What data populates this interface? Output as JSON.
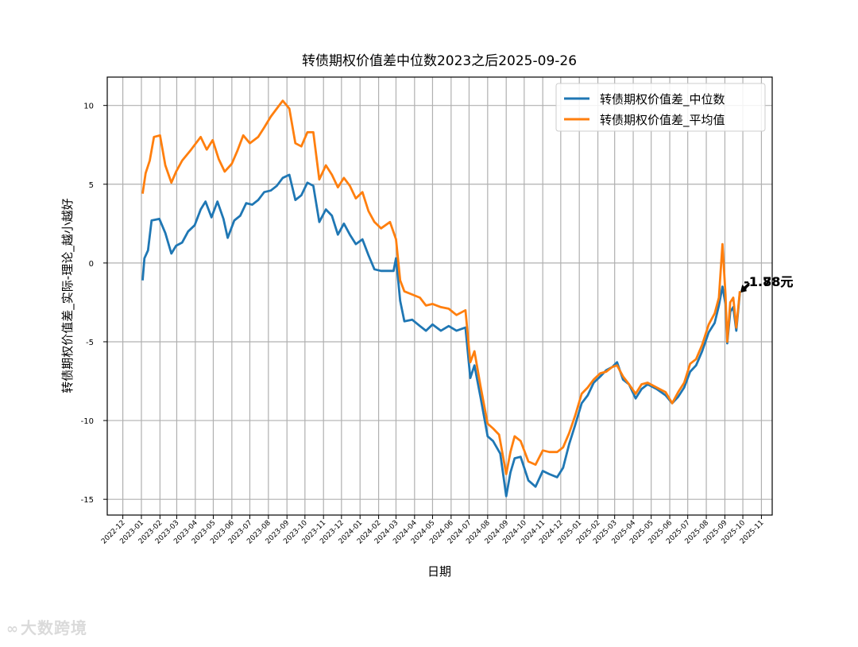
{
  "chart_data": {
    "type": "line",
    "title": "转债期权价值差中位数2023之后2025-09-26",
    "xlabel": "日期",
    "ylabel": "转债期权价值差_实际-理论_越小越好",
    "ylim": [
      -16,
      11.8
    ],
    "yticks": [
      10,
      5,
      0,
      -5,
      -10,
      -15
    ],
    "x_tick_labels": [
      "2022-12",
      "2023-01",
      "2023-02",
      "2023-03",
      "2023-04",
      "2023-05",
      "2023-06",
      "2023-07",
      "2023-08",
      "2023-09",
      "2023-10",
      "2023-11",
      "2023-12",
      "2024-01",
      "2024-02",
      "2024-03",
      "2024-04",
      "2024-05",
      "2024-06",
      "2024-07",
      "2024-08",
      "2024-09",
      "2024-10",
      "2024-11",
      "2024-12",
      "2025-01",
      "2025-02",
      "2025-03",
      "2025-04",
      "2025-05",
      "2025-06",
      "2025-07",
      "2025-08",
      "2025-09",
      "2025-10",
      "2025-11"
    ],
    "grid": true,
    "legend": "top-right",
    "series": [
      {
        "name": "转债期权价值差_中位数",
        "color": "#1f77b4",
        "points": [
          [
            "2023-01-03",
            -1.1
          ],
          [
            "2023-01-06",
            0.3
          ],
          [
            "2023-01-12",
            0.8
          ],
          [
            "2023-01-18",
            2.7
          ],
          [
            "2023-01-31",
            2.8
          ],
          [
            "2023-02-10",
            1.9
          ],
          [
            "2023-02-20",
            0.6
          ],
          [
            "2023-02-28",
            1.1
          ],
          [
            "2023-03-10",
            1.3
          ],
          [
            "2023-03-20",
            2.0
          ],
          [
            "2023-03-31",
            2.4
          ],
          [
            "2023-04-10",
            3.4
          ],
          [
            "2023-04-18",
            3.9
          ],
          [
            "2023-04-28",
            2.9
          ],
          [
            "2023-05-08",
            3.9
          ],
          [
            "2023-05-18",
            2.8
          ],
          [
            "2023-05-25",
            1.6
          ],
          [
            "2023-06-05",
            2.7
          ],
          [
            "2023-06-15",
            3.0
          ],
          [
            "2023-06-25",
            3.8
          ],
          [
            "2023-07-05",
            3.7
          ],
          [
            "2023-07-15",
            4.0
          ],
          [
            "2023-07-25",
            4.5
          ],
          [
            "2023-08-05",
            4.6
          ],
          [
            "2023-08-15",
            4.9
          ],
          [
            "2023-08-25",
            5.4
          ],
          [
            "2023-09-05",
            5.6
          ],
          [
            "2023-09-15",
            4.0
          ],
          [
            "2023-09-25",
            4.3
          ],
          [
            "2023-10-05",
            5.1
          ],
          [
            "2023-10-15",
            4.9
          ],
          [
            "2023-10-25",
            2.6
          ],
          [
            "2023-11-05",
            3.4
          ],
          [
            "2023-11-15",
            3.0
          ],
          [
            "2023-11-25",
            1.8
          ],
          [
            "2023-12-05",
            2.5
          ],
          [
            "2023-12-15",
            1.8
          ],
          [
            "2023-12-25",
            1.2
          ],
          [
            "2024-01-05",
            1.5
          ],
          [
            "2024-01-15",
            0.5
          ],
          [
            "2024-01-25",
            -0.4
          ],
          [
            "2024-02-05",
            -0.5
          ],
          [
            "2024-02-26",
            -0.5
          ],
          [
            "2024-03-01",
            0.3
          ],
          [
            "2024-03-08",
            -2.4
          ],
          [
            "2024-03-15",
            -3.7
          ],
          [
            "2024-03-28",
            -3.6
          ],
          [
            "2024-04-10",
            -4.0
          ],
          [
            "2024-04-20",
            -4.3
          ],
          [
            "2024-05-01",
            -3.9
          ],
          [
            "2024-05-15",
            -4.3
          ],
          [
            "2024-05-28",
            -4.0
          ],
          [
            "2024-06-10",
            -4.3
          ],
          [
            "2024-06-25",
            -4.1
          ],
          [
            "2024-07-03",
            -7.3
          ],
          [
            "2024-07-10",
            -6.5
          ],
          [
            "2024-07-20",
            -8.5
          ],
          [
            "2024-08-01",
            -11.0
          ],
          [
            "2024-08-10",
            -11.3
          ],
          [
            "2024-08-22",
            -12.1
          ],
          [
            "2024-09-01",
            -14.8
          ],
          [
            "2024-09-08",
            -13.3
          ],
          [
            "2024-09-15",
            -12.4
          ],
          [
            "2024-09-25",
            -12.3
          ],
          [
            "2024-10-08",
            -13.8
          ],
          [
            "2024-10-20",
            -14.2
          ],
          [
            "2024-11-01",
            -13.2
          ],
          [
            "2024-11-12",
            -13.4
          ],
          [
            "2024-11-25",
            -13.6
          ],
          [
            "2024-12-05",
            -13.0
          ],
          [
            "2024-12-15",
            -11.5
          ],
          [
            "2024-12-25",
            -10.3
          ],
          [
            "2025-01-05",
            -8.9
          ],
          [
            "2025-01-15",
            -8.4
          ],
          [
            "2025-01-25",
            -7.6
          ],
          [
            "2025-02-05",
            -7.2
          ],
          [
            "2025-02-15",
            -6.8
          ],
          [
            "2025-02-25",
            -6.6
          ],
          [
            "2025-03-05",
            -6.3
          ],
          [
            "2025-03-15",
            -7.4
          ],
          [
            "2025-03-25",
            -7.7
          ],
          [
            "2025-04-05",
            -8.6
          ],
          [
            "2025-04-15",
            -8.0
          ],
          [
            "2025-04-25",
            -7.7
          ],
          [
            "2025-05-10",
            -8.0
          ],
          [
            "2025-05-25",
            -8.4
          ],
          [
            "2025-06-05",
            -8.9
          ],
          [
            "2025-06-15",
            -8.5
          ],
          [
            "2025-06-25",
            -7.9
          ],
          [
            "2025-07-05",
            -6.9
          ],
          [
            "2025-07-15",
            -6.5
          ],
          [
            "2025-07-25",
            -5.6
          ],
          [
            "2025-08-05",
            -4.4
          ],
          [
            "2025-08-15",
            -3.8
          ],
          [
            "2025-08-22",
            -2.7
          ],
          [
            "2025-08-28",
            -1.5
          ],
          [
            "2025-09-02",
            -2.6
          ],
          [
            "2025-09-05",
            -5.1
          ],
          [
            "2025-09-10",
            -3.1
          ],
          [
            "2025-09-15",
            -2.8
          ],
          [
            "2025-09-20",
            -4.3
          ],
          [
            "2025-09-26",
            -1.88
          ]
        ]
      },
      {
        "name": "转债期权价值差_平均值",
        "color": "#ff7f0e",
        "points": [
          [
            "2023-01-03",
            4.4
          ],
          [
            "2023-01-08",
            5.7
          ],
          [
            "2023-01-15",
            6.5
          ],
          [
            "2023-01-22",
            8.0
          ],
          [
            "2023-02-01",
            8.1
          ],
          [
            "2023-02-10",
            6.2
          ],
          [
            "2023-02-20",
            5.1
          ],
          [
            "2023-02-28",
            5.8
          ],
          [
            "2023-03-10",
            6.5
          ],
          [
            "2023-03-25",
            7.2
          ],
          [
            "2023-04-10",
            8.0
          ],
          [
            "2023-04-20",
            7.2
          ],
          [
            "2023-04-30",
            7.8
          ],
          [
            "2023-05-10",
            6.6
          ],
          [
            "2023-05-20",
            5.8
          ],
          [
            "2023-06-01",
            6.3
          ],
          [
            "2023-06-10",
            7.1
          ],
          [
            "2023-06-20",
            8.1
          ],
          [
            "2023-07-01",
            7.6
          ],
          [
            "2023-07-15",
            8.0
          ],
          [
            "2023-07-25",
            8.6
          ],
          [
            "2023-08-05",
            9.3
          ],
          [
            "2023-08-15",
            9.8
          ],
          [
            "2023-08-25",
            10.3
          ],
          [
            "2023-09-05",
            9.8
          ],
          [
            "2023-09-15",
            7.6
          ],
          [
            "2023-09-25",
            7.4
          ],
          [
            "2023-10-05",
            8.3
          ],
          [
            "2023-10-15",
            8.3
          ],
          [
            "2023-10-25",
            5.3
          ],
          [
            "2023-11-05",
            6.2
          ],
          [
            "2023-11-15",
            5.6
          ],
          [
            "2023-11-25",
            4.8
          ],
          [
            "2023-12-05",
            5.4
          ],
          [
            "2023-12-15",
            4.9
          ],
          [
            "2023-12-25",
            4.1
          ],
          [
            "2024-01-05",
            4.5
          ],
          [
            "2024-01-15",
            3.3
          ],
          [
            "2024-01-25",
            2.6
          ],
          [
            "2024-02-05",
            2.2
          ],
          [
            "2024-02-20",
            2.6
          ],
          [
            "2024-03-01",
            1.5
          ],
          [
            "2024-03-08",
            -1.1
          ],
          [
            "2024-03-15",
            -1.8
          ],
          [
            "2024-03-28",
            -2.0
          ],
          [
            "2024-04-10",
            -2.2
          ],
          [
            "2024-04-20",
            -2.7
          ],
          [
            "2024-05-01",
            -2.6
          ],
          [
            "2024-05-15",
            -2.8
          ],
          [
            "2024-05-28",
            -2.9
          ],
          [
            "2024-06-10",
            -3.3
          ],
          [
            "2024-06-25",
            -3.0
          ],
          [
            "2024-07-03",
            -6.3
          ],
          [
            "2024-07-10",
            -5.6
          ],
          [
            "2024-07-20",
            -7.8
          ],
          [
            "2024-08-01",
            -10.2
          ],
          [
            "2024-08-10",
            -10.5
          ],
          [
            "2024-08-20",
            -10.9
          ],
          [
            "2024-09-01",
            -13.4
          ],
          [
            "2024-09-08",
            -12.0
          ],
          [
            "2024-09-15",
            -11.0
          ],
          [
            "2024-09-25",
            -11.3
          ],
          [
            "2024-10-08",
            -12.6
          ],
          [
            "2024-10-20",
            -12.8
          ],
          [
            "2024-11-01",
            -11.9
          ],
          [
            "2024-11-12",
            -12.0
          ],
          [
            "2024-11-25",
            -12.0
          ],
          [
            "2024-12-05",
            -11.7
          ],
          [
            "2024-12-15",
            -10.8
          ],
          [
            "2024-12-25",
            -9.7
          ],
          [
            "2025-01-05",
            -8.3
          ],
          [
            "2025-01-15",
            -7.9
          ],
          [
            "2025-01-25",
            -7.4
          ],
          [
            "2025-02-05",
            -7.0
          ],
          [
            "2025-02-15",
            -6.9
          ],
          [
            "2025-02-25",
            -6.6
          ],
          [
            "2025-03-05",
            -6.5
          ],
          [
            "2025-03-15",
            -7.2
          ],
          [
            "2025-03-25",
            -7.7
          ],
          [
            "2025-04-05",
            -8.3
          ],
          [
            "2025-04-15",
            -7.7
          ],
          [
            "2025-04-25",
            -7.6
          ],
          [
            "2025-05-10",
            -7.9
          ],
          [
            "2025-05-25",
            -8.2
          ],
          [
            "2025-06-05",
            -8.9
          ],
          [
            "2025-06-15",
            -8.2
          ],
          [
            "2025-06-25",
            -7.6
          ],
          [
            "2025-07-05",
            -6.4
          ],
          [
            "2025-07-15",
            -6.1
          ],
          [
            "2025-07-25",
            -5.2
          ],
          [
            "2025-08-05",
            -3.9
          ],
          [
            "2025-08-15",
            -3.2
          ],
          [
            "2025-08-22",
            -2.2
          ],
          [
            "2025-08-28",
            1.2
          ],
          [
            "2025-09-02",
            -2.0
          ],
          [
            "2025-09-05",
            -5.0
          ],
          [
            "2025-09-10",
            -2.5
          ],
          [
            "2025-09-15",
            -2.2
          ],
          [
            "2025-09-20",
            -4.1
          ],
          [
            "2025-09-26",
            -1.78
          ]
        ]
      }
    ],
    "annotations": [
      {
        "text": "-1.88元",
        "x": "2025-09-26",
        "y": -1.88,
        "color": "#1f77b4"
      },
      {
        "text": "-1.78元",
        "x": "2025-09-26",
        "y": -1.78,
        "color": "#ff7f0e"
      }
    ]
  },
  "watermark": {
    "text": "大数跨境"
  }
}
